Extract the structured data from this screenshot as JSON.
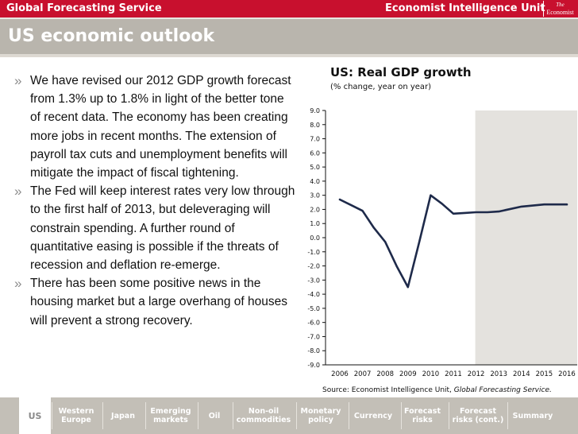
{
  "header": {
    "service": "Global Forecasting Service",
    "eiu": "Economist Intelligence Unit",
    "logo_the": "The",
    "logo_name": "Economist"
  },
  "page_title": "US economic outlook",
  "bullets": [
    "We have revised our 2012 GDP growth forecast from 1.3% up to 1.8% in light of the better tone of recent data. The economy has been creating more jobs in recent months. The extension of payroll tax cuts and unemployment benefits will mitigate the impact of fiscal tightening.",
    "The Fed will keep interest rates very low through to the first half of 2013, but deleveraging will constrain spending. A further round of quantitative easing is possible if the threats of recession and deflation re-emerge.",
    "There has been some positive news in the housing market but a large overhang of houses will prevent  a strong recovery."
  ],
  "bullet_marker": "»",
  "chart_data": {
    "type": "line",
    "title": "US: Real GDP growth",
    "subtitle": "(% change,  year on year)",
    "source_prefix": "Source: Economist Intelligence Unit, ",
    "source_italic": "Global Forecasting Service.",
    "xlabel": "",
    "ylabel": "",
    "ylim": [
      -9.0,
      9.0
    ],
    "yticks": [
      "9.0",
      "8.0",
      "7.0",
      "6.0",
      "5.0",
      "4.0",
      "3.0",
      "2.0",
      "1.0",
      "0.0",
      "-1.0",
      "-2.0",
      "-3.0",
      "-4.0",
      "-5.0",
      "-6.0",
      "-7.0",
      "-8.0",
      "-9.0"
    ],
    "categories": [
      "2006",
      "2007",
      "2008",
      "2009",
      "2010",
      "2011",
      "2012",
      "2013",
      "2014",
      "2015",
      "2016"
    ],
    "series": [
      {
        "x": [
          2006,
          2006.5,
          2007,
          2007.5,
          2008,
          2008.5,
          2009,
          2009.5,
          2010,
          2010.5,
          2011,
          2011.5,
          2012,
          2012.5,
          2013,
          2014,
          2015,
          2016
        ],
        "values": [
          2.7,
          2.3,
          1.9,
          0.7,
          -0.3,
          -2.0,
          -3.5,
          -0.3,
          3.0,
          2.4,
          1.7,
          1.75,
          1.8,
          1.8,
          1.85,
          2.2,
          2.35,
          2.35
        ]
      }
    ],
    "forecast_shading_from": "2012",
    "colors": {
      "line": "#1e2a4a",
      "forecast_band": "#e4e2de",
      "axis": "#111111"
    }
  },
  "nav": [
    {
      "label": "US",
      "active": true
    },
    {
      "label": "Western Europe"
    },
    {
      "label": "Japan"
    },
    {
      "label": "Emerging markets"
    },
    {
      "label": "Oil"
    },
    {
      "label": "Non-oil commodities"
    },
    {
      "label": "Monetary policy"
    },
    {
      "label": "Currency"
    },
    {
      "label": "Forecast risks"
    },
    {
      "label": "Forecast risks (cont.)"
    },
    {
      "label": "Summary"
    }
  ],
  "colors": {
    "brand_red": "#c8102e",
    "title_band": "#b9b5ad",
    "nav_bg": "#c3bfb7"
  }
}
